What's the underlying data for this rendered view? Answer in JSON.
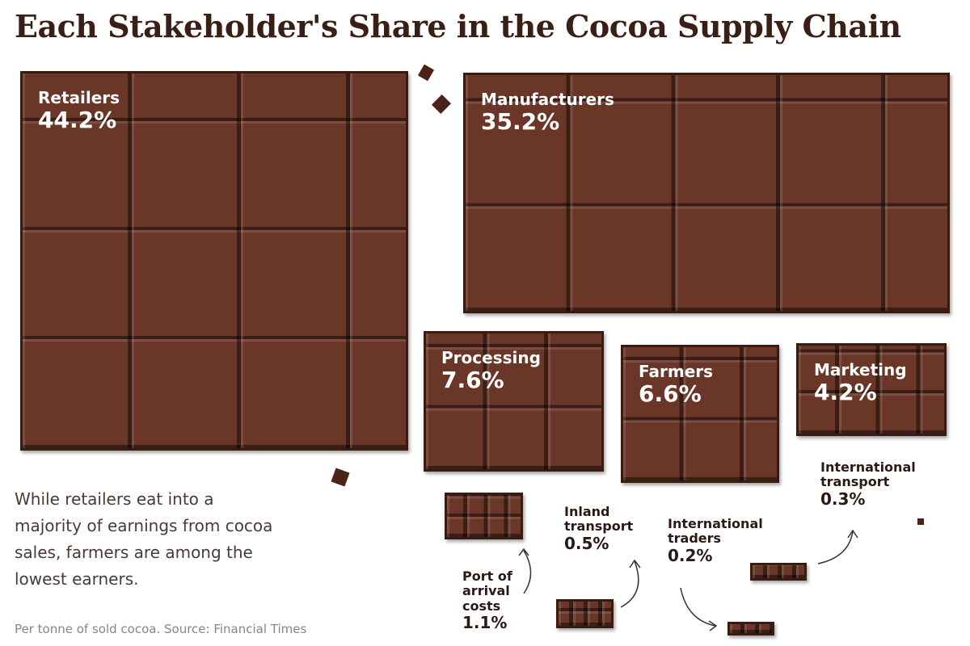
{
  "chart_data": {
    "type": "block",
    "title": "Each Stakeholder's Share in the Cocoa Supply Chain",
    "categories": [
      "Retailers",
      "Manufacturers",
      "Processing",
      "Farmers",
      "Marketing",
      "Port of arrival costs",
      "Inland transport",
      "International traders",
      "International transport"
    ],
    "values": [
      44.2,
      35.2,
      7.6,
      6.6,
      4.2,
      1.1,
      0.5,
      0.2,
      0.3
    ],
    "value_labels": [
      "44.2%",
      "35.2%",
      "7.6%",
      "6.6%",
      "4.2%",
      "1.1%",
      "0.5%",
      "0.2%",
      "0.3%"
    ],
    "color": "#6a3627"
  },
  "note": "While retailers eat into a majority of earnings from cocoa sales, farmers are among the lowest earners.",
  "source": "Per tonne of sold cocoa. Source: Financial Times"
}
